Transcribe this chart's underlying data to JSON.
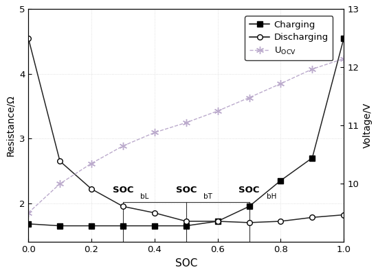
{
  "soc": [
    0.0,
    0.1,
    0.2,
    0.3,
    0.4,
    0.5,
    0.6,
    0.7,
    0.8,
    0.9,
    1.0
  ],
  "charging_resistance": [
    1.68,
    1.65,
    1.65,
    1.65,
    1.65,
    1.65,
    1.72,
    1.95,
    2.35,
    2.7,
    4.55
  ],
  "discharging_resistance": [
    4.55,
    2.65,
    2.22,
    1.95,
    1.85,
    1.72,
    1.72,
    1.7,
    1.72,
    1.78,
    1.82
  ],
  "uocv_voltage": [
    9.5,
    10.0,
    10.35,
    10.65,
    10.88,
    11.05,
    11.25,
    11.48,
    11.72,
    11.97,
    12.15
  ],
  "soc_bL": 0.3,
  "soc_bT": 0.5,
  "soc_bH": 0.7,
  "horizontal_line_y": 2.02,
  "xlabel": "SOC",
  "ylabel_left": "Resistance/Ω",
  "ylabel_right": "Voltage/V",
  "xlim": [
    0.0,
    1.0
  ],
  "ylim_left": [
    1.4,
    5.0
  ],
  "ylim_right": [
    9.0,
    13.0
  ],
  "xticks": [
    0.0,
    0.2,
    0.4,
    0.6,
    0.8,
    1.0
  ],
  "yticks_left": [
    2,
    3,
    4,
    5
  ],
  "yticks_right": [
    10,
    11,
    12,
    13
  ],
  "charging_color": "#222222",
  "discharging_color": "#222222",
  "uocv_color": "#aaaaaa",
  "legend_charging": "Charging",
  "legend_discharging": "Discharging"
}
